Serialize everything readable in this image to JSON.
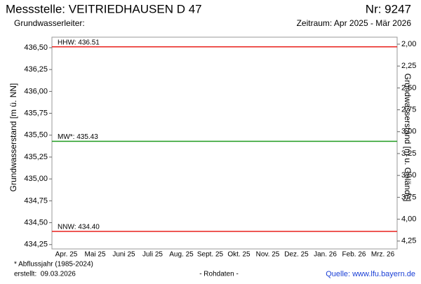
{
  "chart_data": {
    "type": "line",
    "title": "Messstelle: VEITRIEDHAUSEN D 47",
    "number": "Nr: 9247",
    "subtitle_left": "Grundwasserleiter:",
    "subtitle_right": "Zeitraum: Apr 2025 - Mär 2026",
    "ylabel": "Grundwasserstand [m ü. NN]",
    "y2label": "Grundwasserstand [m u. Gelände]",
    "categories": [
      "Apr. 25",
      "Mai 25",
      "Juni 25",
      "Juli 25",
      "Aug. 25",
      "Sept. 25",
      "Okt. 25",
      "Nov. 25",
      "Dez. 25",
      "Jan. 26",
      "Feb. 26",
      "Mrz. 26"
    ],
    "ylim": [
      434.2,
      436.62
    ],
    "yticks": [
      {
        "value": 434.25,
        "label": "434,25"
      },
      {
        "value": 434.5,
        "label": "434,50"
      },
      {
        "value": 434.75,
        "label": "434,75"
      },
      {
        "value": 435,
        "label": "435,00"
      },
      {
        "value": 435.25,
        "label": "435,25"
      },
      {
        "value": 435.5,
        "label": "435,50"
      },
      {
        "value": 435.75,
        "label": "435,75"
      },
      {
        "value": 436,
        "label": "436,00"
      },
      {
        "value": 436.25,
        "label": "436,25"
      },
      {
        "value": 436.5,
        "label": "436,50"
      }
    ],
    "y2lim": [
      1.92,
      4.34
    ],
    "y2_reversed": true,
    "y2ticks": [
      {
        "value": 2,
        "label": "2,00"
      },
      {
        "value": 2.25,
        "label": "2,25"
      },
      {
        "value": 2.5,
        "label": "2,50"
      },
      {
        "value": 2.75,
        "label": "2,75"
      },
      {
        "value": 3,
        "label": "3,00"
      },
      {
        "value": 3.25,
        "label": "3,25"
      },
      {
        "value": 3.5,
        "label": "3,50"
      },
      {
        "value": 3.75,
        "label": "3,75"
      },
      {
        "value": 4,
        "label": "4,00"
      },
      {
        "value": 4.25,
        "label": "4,25"
      }
    ],
    "reference_lines": [
      {
        "value": 436.51,
        "label": "HHW: 436.51",
        "color": "#e8201c"
      },
      {
        "value": 435.43,
        "label": "MW*: 435.43",
        "color": "#1e9a1e"
      },
      {
        "value": 434.4,
        "label": "NNW: 434.40",
        "color": "#e8201c"
      }
    ],
    "footnote": "* Abflussjahr (1985-2024)",
    "created": "erstellt:  09.03.2026",
    "raw": "- Rohdaten -",
    "source": "Quelle: www.lfu.bayern.de"
  }
}
